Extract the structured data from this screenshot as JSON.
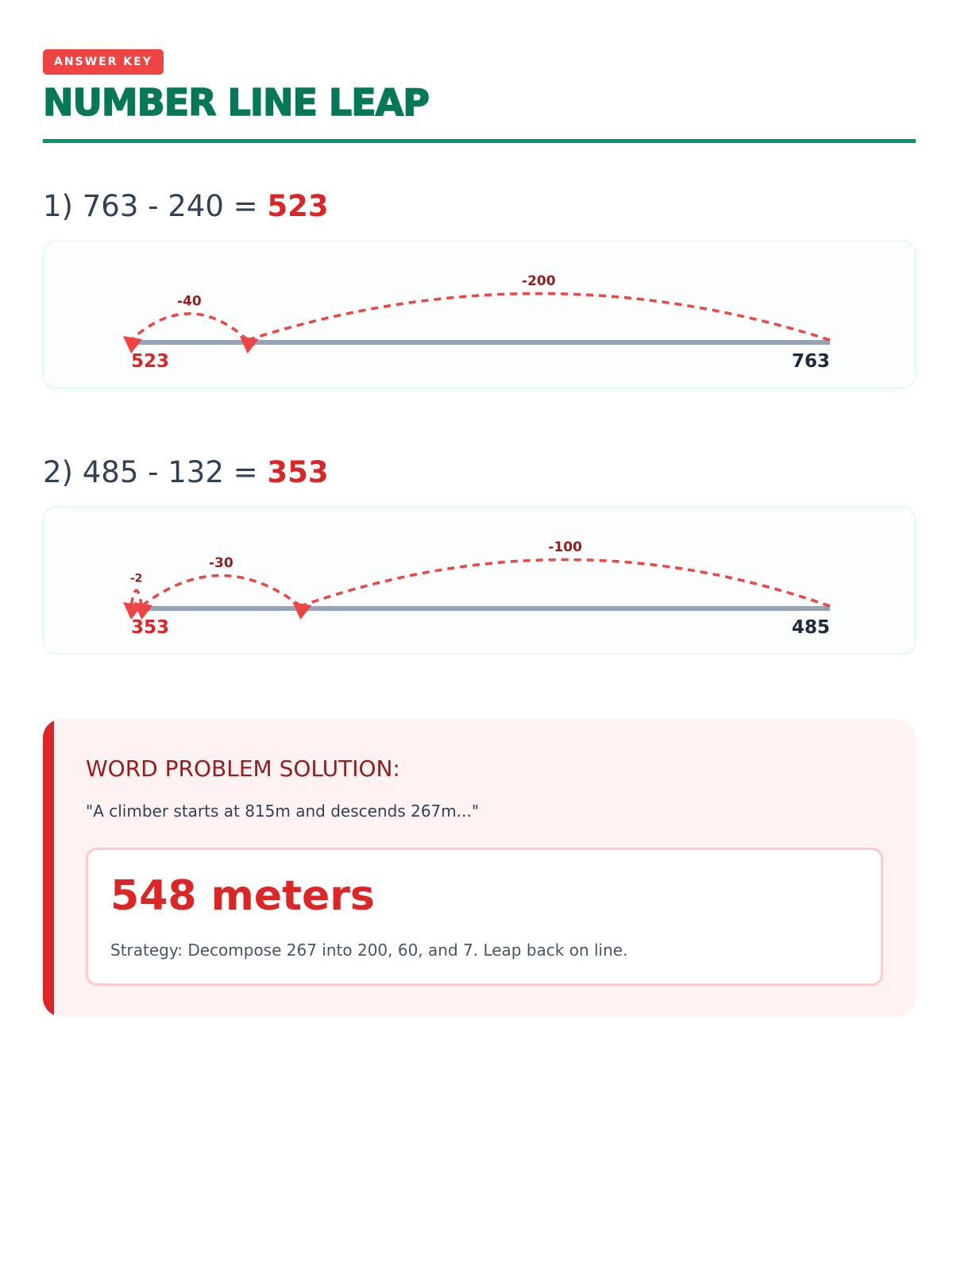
{
  "badge": "ANSWER KEY",
  "title": "NUMBER LINE LEAP",
  "problems": [
    {
      "label": "1) 763 - 240 = ",
      "answer": "523",
      "start": 763,
      "end": 523,
      "jumps": [
        {
          "label": "-200",
          "from": 763,
          "to": 563
        },
        {
          "label": "-40",
          "from": 563,
          "to": 523
        }
      ],
      "left_label": "523",
      "right_label": "763"
    },
    {
      "label": "2) 485 - 132 = ",
      "answer": "353",
      "start": 485,
      "end": 353,
      "jumps": [
        {
          "label": "-100",
          "from": 485,
          "to": 385
        },
        {
          "label": "-30",
          "from": 385,
          "to": 355
        },
        {
          "label": "-2",
          "from": 355,
          "to": 353
        }
      ],
      "left_label": "353",
      "right_label": "485"
    }
  ],
  "word": {
    "heading": "WORD PROBLEM SOLUTION:",
    "quote": "\"A climber starts at 815m and descends 267m...\"",
    "answer": "548 meters",
    "strategy": "Strategy: Decompose 267 into 200, 60, and 7. Leap back on line."
  },
  "colors": {
    "accent": "#dc2626",
    "green": "#047857",
    "line": "#94a3b8"
  }
}
